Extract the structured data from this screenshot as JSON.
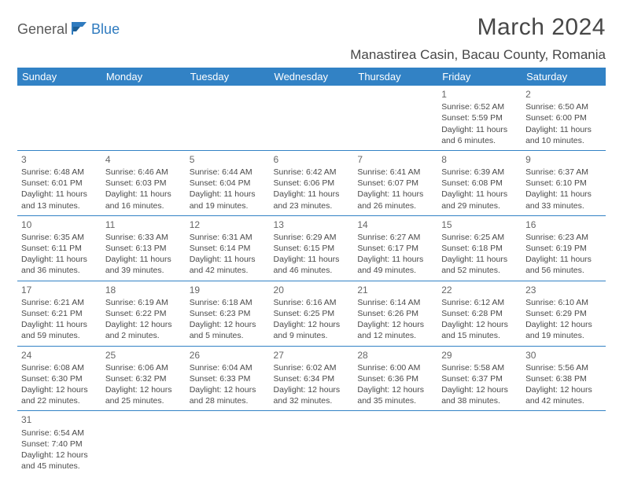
{
  "logo": {
    "general": "General",
    "blue": "Blue"
  },
  "title": "March 2024",
  "location": "Manastirea Casin, Bacau County, Romania",
  "theme": {
    "header_bg": "#3282c5",
    "header_fg": "#ffffff",
    "rule": "#3282c5",
    "text": "#4a4a4a"
  },
  "dow": [
    "Sunday",
    "Monday",
    "Tuesday",
    "Wednesday",
    "Thursday",
    "Friday",
    "Saturday"
  ],
  "weeks": [
    [
      null,
      null,
      null,
      null,
      null,
      {
        "n": "1",
        "sr": "Sunrise: 6:52 AM",
        "ss": "Sunset: 5:59 PM",
        "d1": "Daylight: 11 hours",
        "d2": "and 6 minutes."
      },
      {
        "n": "2",
        "sr": "Sunrise: 6:50 AM",
        "ss": "Sunset: 6:00 PM",
        "d1": "Daylight: 11 hours",
        "d2": "and 10 minutes."
      }
    ],
    [
      {
        "n": "3",
        "sr": "Sunrise: 6:48 AM",
        "ss": "Sunset: 6:01 PM",
        "d1": "Daylight: 11 hours",
        "d2": "and 13 minutes."
      },
      {
        "n": "4",
        "sr": "Sunrise: 6:46 AM",
        "ss": "Sunset: 6:03 PM",
        "d1": "Daylight: 11 hours",
        "d2": "and 16 minutes."
      },
      {
        "n": "5",
        "sr": "Sunrise: 6:44 AM",
        "ss": "Sunset: 6:04 PM",
        "d1": "Daylight: 11 hours",
        "d2": "and 19 minutes."
      },
      {
        "n": "6",
        "sr": "Sunrise: 6:42 AM",
        "ss": "Sunset: 6:06 PM",
        "d1": "Daylight: 11 hours",
        "d2": "and 23 minutes."
      },
      {
        "n": "7",
        "sr": "Sunrise: 6:41 AM",
        "ss": "Sunset: 6:07 PM",
        "d1": "Daylight: 11 hours",
        "d2": "and 26 minutes."
      },
      {
        "n": "8",
        "sr": "Sunrise: 6:39 AM",
        "ss": "Sunset: 6:08 PM",
        "d1": "Daylight: 11 hours",
        "d2": "and 29 minutes."
      },
      {
        "n": "9",
        "sr": "Sunrise: 6:37 AM",
        "ss": "Sunset: 6:10 PM",
        "d1": "Daylight: 11 hours",
        "d2": "and 33 minutes."
      }
    ],
    [
      {
        "n": "10",
        "sr": "Sunrise: 6:35 AM",
        "ss": "Sunset: 6:11 PM",
        "d1": "Daylight: 11 hours",
        "d2": "and 36 minutes."
      },
      {
        "n": "11",
        "sr": "Sunrise: 6:33 AM",
        "ss": "Sunset: 6:13 PM",
        "d1": "Daylight: 11 hours",
        "d2": "and 39 minutes."
      },
      {
        "n": "12",
        "sr": "Sunrise: 6:31 AM",
        "ss": "Sunset: 6:14 PM",
        "d1": "Daylight: 11 hours",
        "d2": "and 42 minutes."
      },
      {
        "n": "13",
        "sr": "Sunrise: 6:29 AM",
        "ss": "Sunset: 6:15 PM",
        "d1": "Daylight: 11 hours",
        "d2": "and 46 minutes."
      },
      {
        "n": "14",
        "sr": "Sunrise: 6:27 AM",
        "ss": "Sunset: 6:17 PM",
        "d1": "Daylight: 11 hours",
        "d2": "and 49 minutes."
      },
      {
        "n": "15",
        "sr": "Sunrise: 6:25 AM",
        "ss": "Sunset: 6:18 PM",
        "d1": "Daylight: 11 hours",
        "d2": "and 52 minutes."
      },
      {
        "n": "16",
        "sr": "Sunrise: 6:23 AM",
        "ss": "Sunset: 6:19 PM",
        "d1": "Daylight: 11 hours",
        "d2": "and 56 minutes."
      }
    ],
    [
      {
        "n": "17",
        "sr": "Sunrise: 6:21 AM",
        "ss": "Sunset: 6:21 PM",
        "d1": "Daylight: 11 hours",
        "d2": "and 59 minutes."
      },
      {
        "n": "18",
        "sr": "Sunrise: 6:19 AM",
        "ss": "Sunset: 6:22 PM",
        "d1": "Daylight: 12 hours",
        "d2": "and 2 minutes."
      },
      {
        "n": "19",
        "sr": "Sunrise: 6:18 AM",
        "ss": "Sunset: 6:23 PM",
        "d1": "Daylight: 12 hours",
        "d2": "and 5 minutes."
      },
      {
        "n": "20",
        "sr": "Sunrise: 6:16 AM",
        "ss": "Sunset: 6:25 PM",
        "d1": "Daylight: 12 hours",
        "d2": "and 9 minutes."
      },
      {
        "n": "21",
        "sr": "Sunrise: 6:14 AM",
        "ss": "Sunset: 6:26 PM",
        "d1": "Daylight: 12 hours",
        "d2": "and 12 minutes."
      },
      {
        "n": "22",
        "sr": "Sunrise: 6:12 AM",
        "ss": "Sunset: 6:28 PM",
        "d1": "Daylight: 12 hours",
        "d2": "and 15 minutes."
      },
      {
        "n": "23",
        "sr": "Sunrise: 6:10 AM",
        "ss": "Sunset: 6:29 PM",
        "d1": "Daylight: 12 hours",
        "d2": "and 19 minutes."
      }
    ],
    [
      {
        "n": "24",
        "sr": "Sunrise: 6:08 AM",
        "ss": "Sunset: 6:30 PM",
        "d1": "Daylight: 12 hours",
        "d2": "and 22 minutes."
      },
      {
        "n": "25",
        "sr": "Sunrise: 6:06 AM",
        "ss": "Sunset: 6:32 PM",
        "d1": "Daylight: 12 hours",
        "d2": "and 25 minutes."
      },
      {
        "n": "26",
        "sr": "Sunrise: 6:04 AM",
        "ss": "Sunset: 6:33 PM",
        "d1": "Daylight: 12 hours",
        "d2": "and 28 minutes."
      },
      {
        "n": "27",
        "sr": "Sunrise: 6:02 AM",
        "ss": "Sunset: 6:34 PM",
        "d1": "Daylight: 12 hours",
        "d2": "and 32 minutes."
      },
      {
        "n": "28",
        "sr": "Sunrise: 6:00 AM",
        "ss": "Sunset: 6:36 PM",
        "d1": "Daylight: 12 hours",
        "d2": "and 35 minutes."
      },
      {
        "n": "29",
        "sr": "Sunrise: 5:58 AM",
        "ss": "Sunset: 6:37 PM",
        "d1": "Daylight: 12 hours",
        "d2": "and 38 minutes."
      },
      {
        "n": "30",
        "sr": "Sunrise: 5:56 AM",
        "ss": "Sunset: 6:38 PM",
        "d1": "Daylight: 12 hours",
        "d2": "and 42 minutes."
      }
    ],
    [
      {
        "n": "31",
        "sr": "Sunrise: 6:54 AM",
        "ss": "Sunset: 7:40 PM",
        "d1": "Daylight: 12 hours",
        "d2": "and 45 minutes."
      },
      null,
      null,
      null,
      null,
      null,
      null
    ]
  ]
}
